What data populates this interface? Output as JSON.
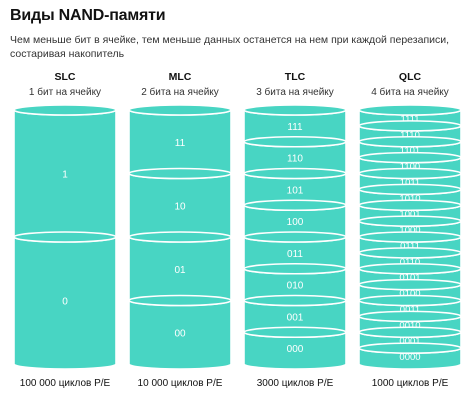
{
  "title": "Виды NAND-памяти",
  "subtitle": "Чем меньше бит в ячейке, тем меньше данных останется на нем при каждой перезаписи, состаривая накопитель",
  "colors": {
    "fill": "#48d5c3",
    "stroke": "#ffffff",
    "label": "#ffffff"
  },
  "columns": [
    {
      "name": "SLC",
      "desc": "1 бит на ячейку",
      "cycles": "100 000 циклов P/E",
      "levels": [
        "1",
        "0"
      ]
    },
    {
      "name": "MLC",
      "desc": "2 бита на ячейку",
      "cycles": "10 000 циклов P/E",
      "levels": [
        "11",
        "10",
        "01",
        "00"
      ]
    },
    {
      "name": "TLC",
      "desc": "3 бита на ячейку",
      "cycles": "3000 циклов P/E",
      "levels": [
        "111",
        "110",
        "101",
        "100",
        "011",
        "010",
        "001",
        "000"
      ]
    },
    {
      "name": "QLC",
      "desc": "4 бита на ячейку",
      "cycles": "1000 циклов P/E",
      "levels": [
        "1111",
        "1110",
        "1101",
        "1100",
        "1011",
        "1010",
        "1001",
        "1000",
        "0111",
        "0110",
        "0101",
        "0100",
        "0011",
        "0010",
        "0001",
        "0000"
      ]
    }
  ]
}
